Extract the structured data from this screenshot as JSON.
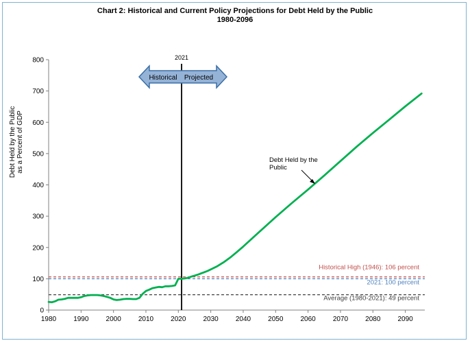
{
  "chart_data": {
    "type": "line",
    "title": "Chart 2:  Historical and Current Policy Projections for Debt Held by the Public",
    "subtitle": "1980-2096",
    "ylabel_line1": "Debt Held by the Public",
    "ylabel_line2": "as a Percent of GDP",
    "xlim": [
      1980,
      2096
    ],
    "ylim": [
      0,
      800
    ],
    "x_ticks": [
      1980,
      1990,
      2000,
      2010,
      2020,
      2030,
      2040,
      2050,
      2060,
      2070,
      2080,
      2090
    ],
    "y_ticks": [
      0,
      100,
      200,
      300,
      400,
      500,
      600,
      700,
      800
    ],
    "grid": false,
    "series": [
      {
        "name": "Debt Held by the Public",
        "color": "#00b050",
        "x": [
          1980,
          1981,
          1982,
          1983,
          1984,
          1985,
          1986,
          1987,
          1988,
          1989,
          1990,
          1991,
          1992,
          1993,
          1994,
          1995,
          1996,
          1997,
          1998,
          1999,
          2000,
          2001,
          2002,
          2003,
          2004,
          2005,
          2006,
          2007,
          2008,
          2009,
          2010,
          2011,
          2012,
          2013,
          2014,
          2015,
          2016,
          2017,
          2018,
          2019,
          2020,
          2021,
          2022,
          2023,
          2024,
          2025,
          2026,
          2027,
          2028,
          2029,
          2030,
          2032,
          2034,
          2036,
          2038,
          2040,
          2045,
          2050,
          2055,
          2060,
          2065,
          2070,
          2075,
          2080,
          2085,
          2090,
          2095
        ],
        "values": [
          26,
          25,
          28,
          33,
          34,
          36,
          39,
          39,
          39,
          39,
          41,
          45,
          47,
          48,
          48,
          48,
          47,
          45,
          42,
          39,
          34,
          32,
          33,
          35,
          36,
          36,
          35,
          35,
          39,
          52,
          61,
          65,
          70,
          72,
          74,
          73,
          76,
          76,
          77,
          79,
          100,
          100,
          101,
          103,
          107,
          110,
          113,
          117,
          121,
          125,
          130,
          140,
          153,
          168,
          185,
          203,
          250,
          297,
          342,
          385,
          430,
          476,
          522,
          566,
          608,
          651,
          692
        ]
      }
    ],
    "reference_lines": [
      {
        "label": "Historical High (1946): 106 percent",
        "value": 106,
        "color": "#c0504d"
      },
      {
        "label": "2021: 100 percent",
        "value": 100,
        "color": "#4f81bd"
      },
      {
        "label": "Average (1980-2021): 49 percent",
        "value": 49,
        "color": "#404040"
      }
    ],
    "divider": {
      "year": 2021,
      "label": "2021"
    },
    "arrow_labels": {
      "left": "Historical",
      "right": "Projected"
    },
    "annotation": {
      "line1": "Debt Held by the",
      "line2": "Public"
    }
  }
}
